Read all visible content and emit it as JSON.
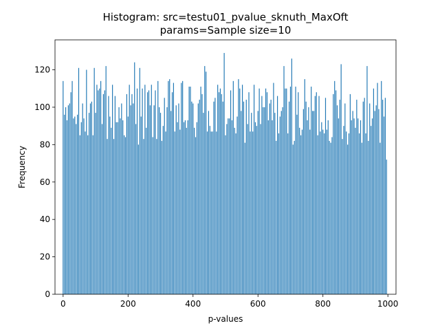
{
  "chart_data": {
    "type": "bar",
    "title": "Histogram: src=testu01_pvalue_sknuth_MaxOft",
    "subtitle": "params=Sample size=10",
    "xlabel": "p-values",
    "ylabel": "Frequency",
    "xlim": [
      -25,
      1025
    ],
    "ylim": [
      0,
      136
    ],
    "xticks": [
      0,
      200,
      400,
      600,
      800,
      1000
    ],
    "yticks": [
      0,
      20,
      40,
      60,
      80,
      100,
      120
    ],
    "bin_count": 250,
    "bin_width": 4,
    "x_start": 0,
    "color": "#1f77b4",
    "value_summary": {
      "typical_min": 80,
      "typical_max": 115
    },
    "notable_values": [
      {
        "x": 0,
        "y": 114
      },
      {
        "x": 4,
        "y": 96
      },
      {
        "x": 24,
        "y": 108
      },
      {
        "x": 48,
        "y": 121
      },
      {
        "x": 72,
        "y": 120
      },
      {
        "x": 96,
        "y": 121
      },
      {
        "x": 132,
        "y": 122
      },
      {
        "x": 220,
        "y": 124
      },
      {
        "x": 236,
        "y": 121
      },
      {
        "x": 436,
        "y": 122
      },
      {
        "x": 440,
        "y": 119
      },
      {
        "x": 496,
        "y": 129
      },
      {
        "x": 680,
        "y": 122
      },
      {
        "x": 704,
        "y": 126
      },
      {
        "x": 856,
        "y": 123
      },
      {
        "x": 936,
        "y": 122
      },
      {
        "x": 980,
        "y": 114
      },
      {
        "x": 996,
        "y": 72
      }
    ]
  }
}
